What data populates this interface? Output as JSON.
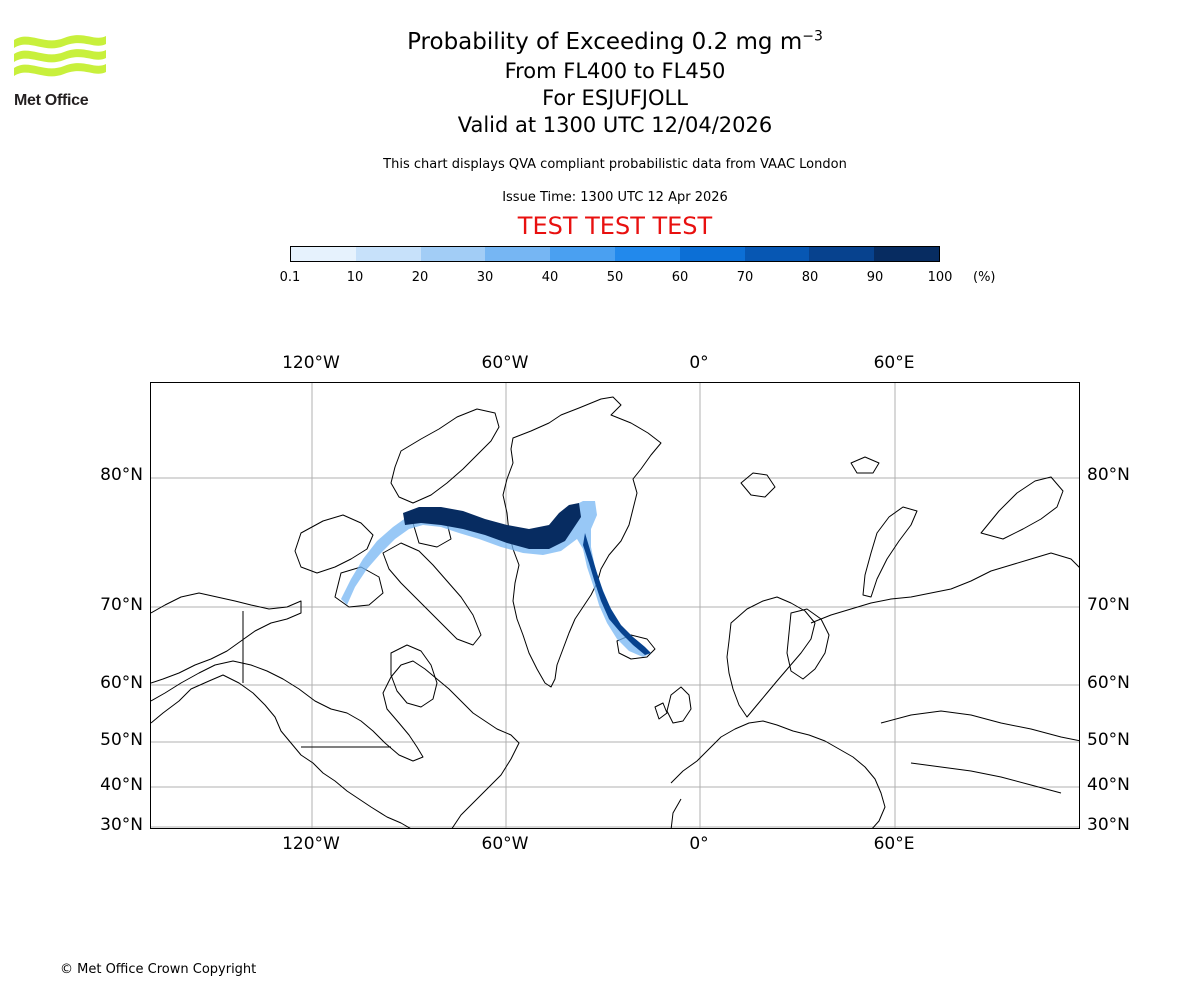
{
  "logo": {
    "name": "met-office-logo",
    "text": "Met Office",
    "color": "#c8f03c"
  },
  "title": {
    "main_prefix": "Probability of Exceeding 0.2 mg m",
    "main_exponent": "−3",
    "levels": "From FL400 to FL450",
    "volcano": "For ESJUFJOLL",
    "valid": "Valid at 1300 UTC 12/04/2026"
  },
  "subtitle": "This chart displays QVA compliant probabilistic data from VAAC London",
  "issue_time": "Issue Time: 1300 UTC 12 Apr 2026",
  "test_banner": {
    "text": "TEST TEST TEST",
    "color": "#e8100f"
  },
  "colorbar": {
    "unit": "(%)",
    "ticks": [
      "0.1",
      "10",
      "20",
      "30",
      "40",
      "50",
      "60",
      "70",
      "80",
      "90",
      "100"
    ],
    "colors": [
      "#e6f2fd",
      "#c7e1fa",
      "#a2cdf6",
      "#76b6f3",
      "#4aa0f1",
      "#2289ec",
      "#0c6fd6",
      "#0757b3",
      "#07428e",
      "#072c61"
    ]
  },
  "map": {
    "projection": "polar stereographic, north-up, frame cropped",
    "lon_labels_top": [
      "120°W",
      "60°W",
      "0°",
      "60°E"
    ],
    "lon_labels_bottom": [
      "120°W",
      "60°W",
      "0°",
      "60°E"
    ],
    "lat_labels_left": [
      "80°N",
      "70°N",
      "60°N",
      "50°N",
      "40°N",
      "30°N"
    ],
    "lat_labels_right": [
      "80°N",
      "70°N",
      "60°N",
      "50°N",
      "40°N",
      "30°N"
    ],
    "gridline_color": "#b0b0b0",
    "plume_color_max": "#072c61"
  },
  "copyright": "© Met Office Crown Copyright"
}
